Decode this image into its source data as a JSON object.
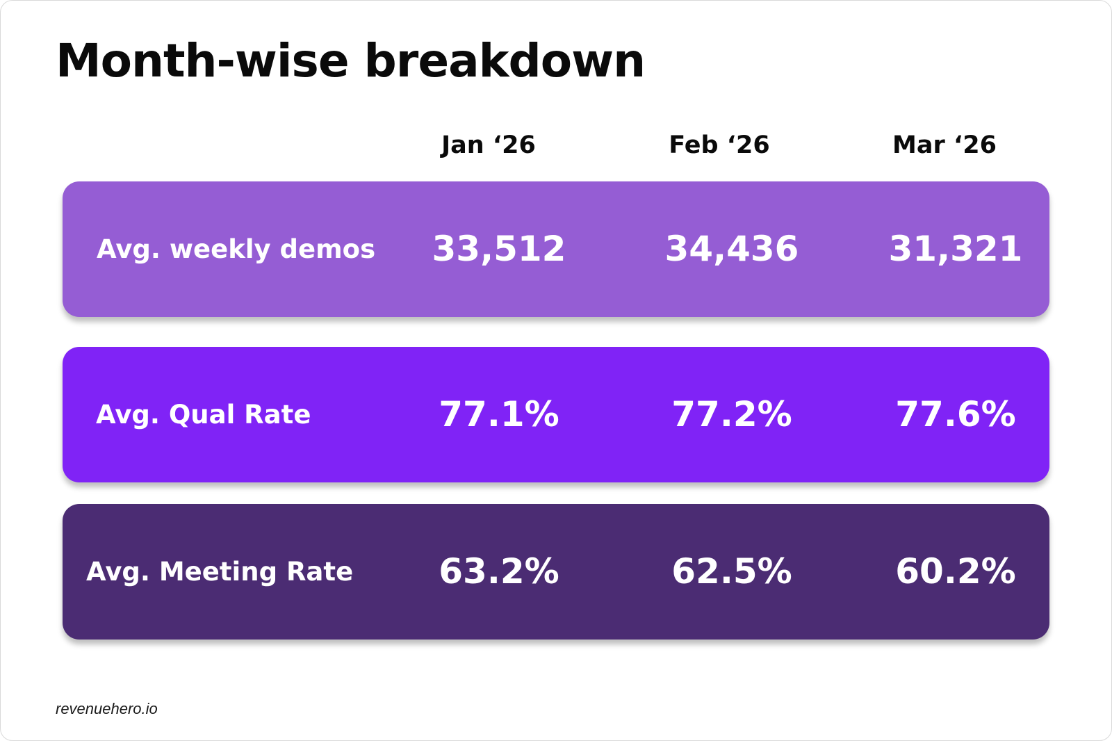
{
  "chart_data": {
    "type": "table",
    "title": "Month-wise breakdown",
    "columns": [
      "Jan ‘26",
      "Feb ‘26",
      "Mar ‘26"
    ],
    "rows": [
      {
        "label": "Avg. weekly demos",
        "values": [
          "33,512",
          "34,436",
          "31,321"
        ],
        "color": "#955DD4"
      },
      {
        "label": "Avg. Qual Rate",
        "values": [
          "77.1%",
          "77.2%",
          "77.6%"
        ],
        "color": "#8023F6"
      },
      {
        "label": "Avg. Meeting Rate",
        "values": [
          "63.2%",
          "62.5%",
          "60.2%"
        ],
        "color": "#4B2C73"
      }
    ]
  },
  "footer": {
    "text": "revenuehero.io"
  }
}
